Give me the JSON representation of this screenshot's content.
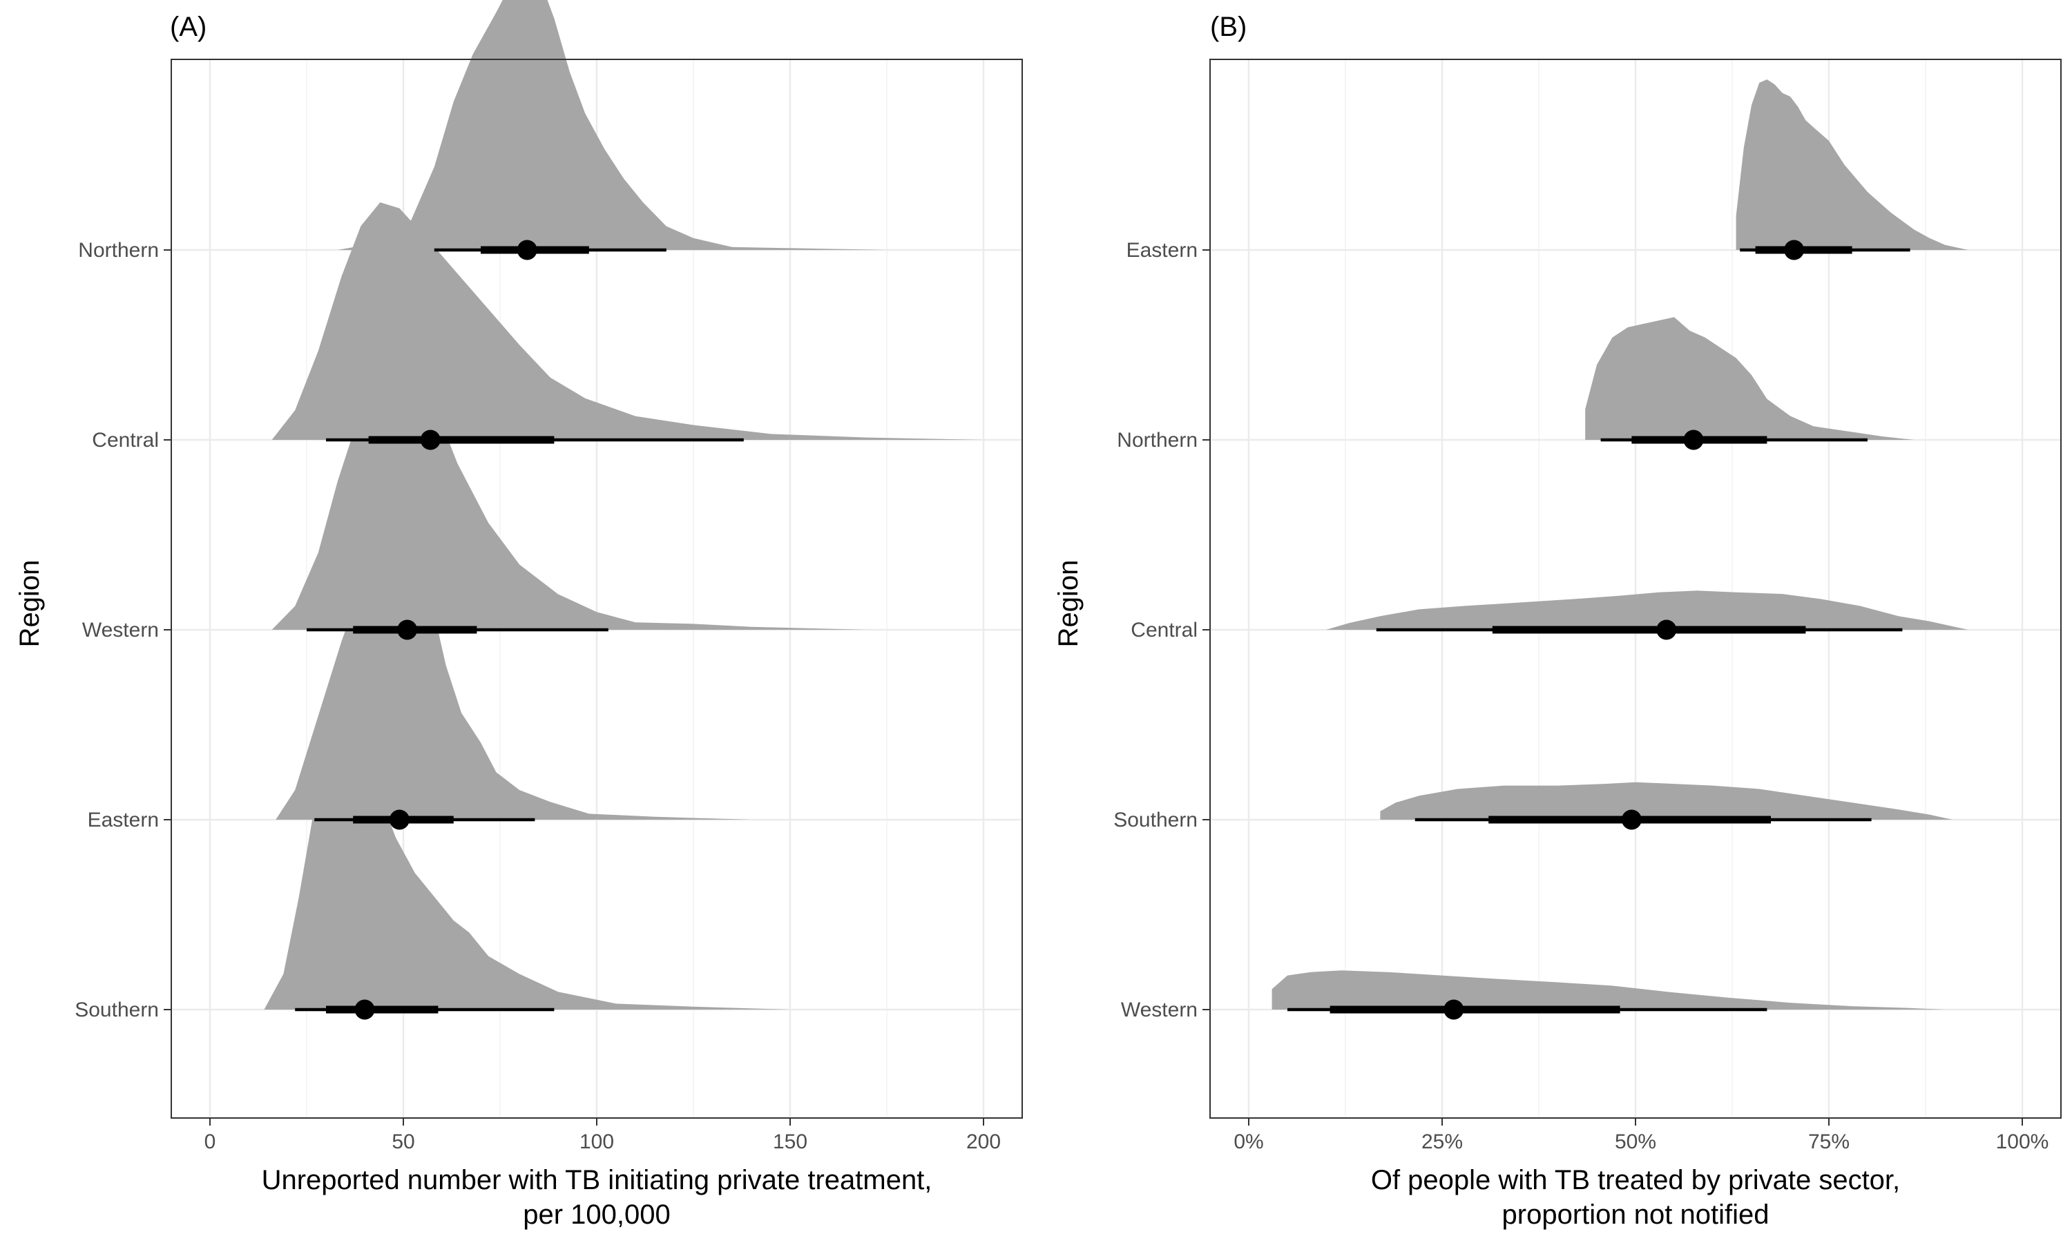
{
  "chart_data": [
    {
      "type": "area",
      "panel_tag": "(A)",
      "title": "",
      "xlabel_lines": [
        "Unreported number with TB initiating private treatment,",
        "per 100,000"
      ],
      "ylabel": "Region",
      "xlim": [
        -10,
        210
      ],
      "x_ticks": [
        0,
        50,
        100,
        150,
        200
      ],
      "x_tick_labels": [
        "0",
        "50",
        "100",
        "150",
        "200"
      ],
      "grid": true,
      "fill_color": "#a6a6a6",
      "interval_color": "#000000",
      "categories": [
        "Northern",
        "Central",
        "Western",
        "Eastern",
        "Southern"
      ],
      "series": [
        {
          "category": "Northern",
          "point": 82,
          "inner": [
            70,
            98
          ],
          "outer": [
            58,
            118
          ],
          "density": [
            [
              33,
              0
            ],
            [
              46,
              0.03
            ],
            [
              52,
              0.1
            ],
            [
              58,
              0.28
            ],
            [
              63,
              0.5
            ],
            [
              68,
              0.66
            ],
            [
              74,
              0.8
            ],
            [
              78,
              0.9
            ],
            [
              82,
              0.97
            ],
            [
              85,
              0.92
            ],
            [
              89,
              0.78
            ],
            [
              93,
              0.6
            ],
            [
              97,
              0.46
            ],
            [
              102,
              0.34
            ],
            [
              107,
              0.24
            ],
            [
              112,
              0.16
            ],
            [
              118,
              0.08
            ],
            [
              125,
              0.04
            ],
            [
              135,
              0.01
            ],
            [
              175,
              0
            ]
          ]
        },
        {
          "category": "Central",
          "point": 57,
          "inner": [
            41,
            89
          ],
          "outer": [
            30,
            138
          ],
          "density": [
            [
              16,
              0
            ],
            [
              22,
              0.1
            ],
            [
              28,
              0.3
            ],
            [
              34,
              0.55
            ],
            [
              39,
              0.72
            ],
            [
              44,
              0.8
            ],
            [
              49,
              0.78
            ],
            [
              56,
              0.68
            ],
            [
              64,
              0.56
            ],
            [
              72,
              0.44
            ],
            [
              80,
              0.32
            ],
            [
              88,
              0.21
            ],
            [
              97,
              0.14
            ],
            [
              110,
              0.08
            ],
            [
              125,
              0.05
            ],
            [
              145,
              0.02
            ],
            [
              170,
              0.008
            ],
            [
              200,
              0
            ]
          ]
        },
        {
          "category": "Western",
          "point": 51,
          "inner": [
            37,
            69
          ],
          "outer": [
            25,
            103
          ],
          "density": [
            [
              16,
              0
            ],
            [
              22,
              0.08
            ],
            [
              28,
              0.26
            ],
            [
              33,
              0.5
            ],
            [
              38,
              0.7
            ],
            [
              42,
              0.78
            ],
            [
              46,
              0.9
            ],
            [
              50,
              0.96
            ],
            [
              54,
              0.92
            ],
            [
              58,
              0.76
            ],
            [
              64,
              0.56
            ],
            [
              72,
              0.36
            ],
            [
              80,
              0.22
            ],
            [
              90,
              0.12
            ],
            [
              100,
              0.06
            ],
            [
              110,
              0.025
            ],
            [
              125,
              0.02
            ],
            [
              140,
              0.01
            ],
            [
              170,
              0
            ]
          ]
        },
        {
          "category": "Eastern",
          "point": 49,
          "inner": [
            37,
            63
          ],
          "outer": [
            27,
            84
          ],
          "density": [
            [
              17,
              0
            ],
            [
              22,
              0.1
            ],
            [
              28,
              0.35
            ],
            [
              34,
              0.6
            ],
            [
              40,
              0.82
            ],
            [
              46,
              0.95
            ],
            [
              50,
              1.0
            ],
            [
              53,
              0.95
            ],
            [
              57,
              0.75
            ],
            [
              61,
              0.52
            ],
            [
              65,
              0.36
            ],
            [
              70,
              0.26
            ],
            [
              74,
              0.16
            ],
            [
              80,
              0.1
            ],
            [
              88,
              0.06
            ],
            [
              98,
              0.02
            ],
            [
              115,
              0.01
            ],
            [
              140,
              0
            ]
          ]
        },
        {
          "category": "Southern",
          "point": 40,
          "inner": [
            30,
            59
          ],
          "outer": [
            22,
            89
          ],
          "density": [
            [
              14,
              0
            ],
            [
              19,
              0.12
            ],
            [
              23,
              0.38
            ],
            [
              27,
              0.68
            ],
            [
              30,
              0.86
            ],
            [
              34,
              0.97
            ],
            [
              37,
              0.94
            ],
            [
              40,
              0.84
            ],
            [
              44,
              0.72
            ],
            [
              48,
              0.58
            ],
            [
              53,
              0.46
            ],
            [
              58,
              0.38
            ],
            [
              63,
              0.3
            ],
            [
              67,
              0.26
            ],
            [
              72,
              0.18
            ],
            [
              80,
              0.12
            ],
            [
              90,
              0.06
            ],
            [
              105,
              0.02
            ],
            [
              125,
              0.01
            ],
            [
              150,
              0
            ]
          ]
        }
      ]
    },
    {
      "type": "area",
      "panel_tag": "(B)",
      "title": "",
      "xlabel_lines": [
        "Of people with TB treated by private sector,",
        "proportion not notified"
      ],
      "ylabel": "Region",
      "xlim": [
        -5,
        105
      ],
      "x_ticks": [
        0,
        25,
        50,
        75,
        100
      ],
      "x_tick_labels": [
        "0%",
        "25%",
        "50%",
        "75%",
        "100%"
      ],
      "grid": true,
      "fill_color": "#a6a6a6",
      "interval_color": "#000000",
      "categories": [
        "Eastern",
        "Northern",
        "Central",
        "Southern",
        "Western"
      ],
      "series": [
        {
          "category": "Eastern",
          "point": 70.5,
          "inner": [
            65.5,
            78
          ],
          "outer": [
            63.5,
            85.5
          ],
          "density": [
            [
              63,
              0
            ],
            [
              63,
              0.2
            ],
            [
              64,
              0.6
            ],
            [
              65,
              0.85
            ],
            [
              66,
              0.98
            ],
            [
              67,
              1.0
            ],
            [
              68,
              0.97
            ],
            [
              69,
              0.92
            ],
            [
              70,
              0.9
            ],
            [
              71,
              0.84
            ],
            [
              72,
              0.76
            ],
            [
              73,
              0.72
            ],
            [
              75,
              0.64
            ],
            [
              77,
              0.5
            ],
            [
              80,
              0.34
            ],
            [
              83,
              0.22
            ],
            [
              86,
              0.12
            ],
            [
              88,
              0.07
            ],
            [
              90,
              0.03
            ],
            [
              93,
              0
            ]
          ]
        },
        {
          "category": "Northern",
          "point": 57.5,
          "inner": [
            49.5,
            67
          ],
          "outer": [
            45.5,
            80
          ],
          "density": [
            [
              43.5,
              0
            ],
            [
              43.5,
              0.18
            ],
            [
              45,
              0.44
            ],
            [
              47,
              0.6
            ],
            [
              49,
              0.66
            ],
            [
              51,
              0.68
            ],
            [
              53,
              0.7
            ],
            [
              55,
              0.72
            ],
            [
              57,
              0.64
            ],
            [
              59,
              0.6
            ],
            [
              61,
              0.54
            ],
            [
              63,
              0.48
            ],
            [
              65,
              0.38
            ],
            [
              67,
              0.24
            ],
            [
              70,
              0.14
            ],
            [
              73,
              0.08
            ],
            [
              76,
              0.06
            ],
            [
              79,
              0.04
            ],
            [
              82,
              0.02
            ],
            [
              86,
              0
            ]
          ]
        },
        {
          "category": "Central",
          "point": 54,
          "inner": [
            31.5,
            72
          ],
          "outer": [
            16.5,
            84.5
          ],
          "density": [
            [
              10,
              0
            ],
            [
              13,
              0.04
            ],
            [
              17,
              0.08
            ],
            [
              22,
              0.12
            ],
            [
              28,
              0.14
            ],
            [
              35,
              0.16
            ],
            [
              42,
              0.18
            ],
            [
              48,
              0.2
            ],
            [
              53,
              0.22
            ],
            [
              58,
              0.23
            ],
            [
              63,
              0.22
            ],
            [
              69,
              0.21
            ],
            [
              74,
              0.18
            ],
            [
              79,
              0.14
            ],
            [
              84,
              0.08
            ],
            [
              88,
              0.05
            ],
            [
              93,
              0
            ]
          ]
        },
        {
          "category": "Southern",
          "point": 49.5,
          "inner": [
            31,
            67.5
          ],
          "outer": [
            21.5,
            80.5
          ],
          "density": [
            [
              17,
              0
            ],
            [
              17,
              0.05
            ],
            [
              19,
              0.1
            ],
            [
              22,
              0.14
            ],
            [
              27,
              0.18
            ],
            [
              33,
              0.2
            ],
            [
              40,
              0.2
            ],
            [
              46,
              0.21
            ],
            [
              50,
              0.22
            ],
            [
              55,
              0.21
            ],
            [
              60,
              0.2
            ],
            [
              66,
              0.18
            ],
            [
              72,
              0.14
            ],
            [
              78,
              0.1
            ],
            [
              84,
              0.06
            ],
            [
              88,
              0.03
            ],
            [
              91,
              0
            ]
          ]
        },
        {
          "category": "Western",
          "point": 26.5,
          "inner": [
            10.5,
            48
          ],
          "outer": [
            5,
            67
          ],
          "density": [
            [
              3,
              0
            ],
            [
              3,
              0.12
            ],
            [
              5,
              0.2
            ],
            [
              8,
              0.22
            ],
            [
              12,
              0.23
            ],
            [
              18,
              0.22
            ],
            [
              25,
              0.2
            ],
            [
              32,
              0.18
            ],
            [
              40,
              0.16
            ],
            [
              47,
              0.14
            ],
            [
              55,
              0.1
            ],
            [
              62,
              0.07
            ],
            [
              70,
              0.04
            ],
            [
              78,
              0.02
            ],
            [
              85,
              0.01
            ],
            [
              90,
              0
            ]
          ]
        }
      ]
    }
  ]
}
